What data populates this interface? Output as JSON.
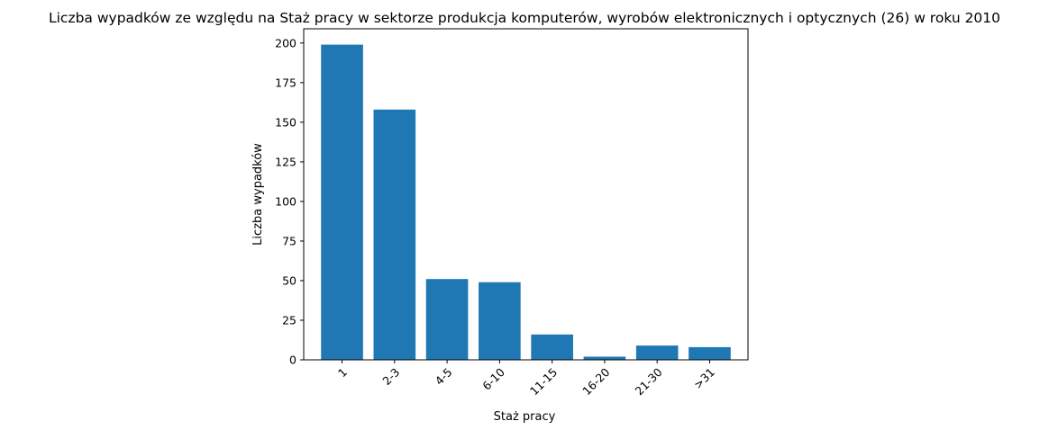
{
  "chart_data": {
    "type": "bar",
    "title": "Liczba wypadków ze względu na Staż pracy w sektorze produkcja komputerów, wyrobów elektronicznych i optycznych (26)  w roku 2010",
    "xlabel": "Staż pracy",
    "ylabel": "Liczba wypadków",
    "categories": [
      "1",
      "2-3",
      "4-5",
      "6-10",
      "11-15",
      "16-20",
      "21-30",
      ">31"
    ],
    "values": [
      199,
      158,
      51,
      49,
      16,
      2,
      9,
      8
    ],
    "ylim": [
      0,
      209
    ],
    "yticks": [
      0,
      25,
      50,
      75,
      100,
      125,
      150,
      175,
      200
    ],
    "bar_color": "#1f77b4",
    "grid": false,
    "legend": "none",
    "xtick_rotation_deg": 45
  }
}
